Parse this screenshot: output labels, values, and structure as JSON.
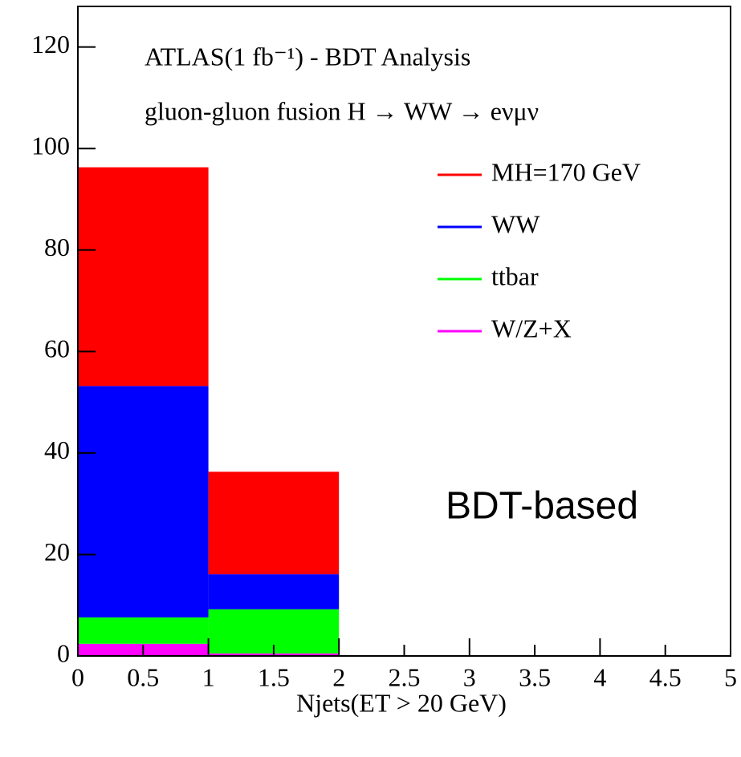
{
  "chart_data": {
    "type": "stacked-histogram",
    "title": "ATLAS(1 fb⁻¹) - BDT Analysis",
    "subtitle": "gluon-gluon fusion H → WW → eνμν",
    "x_label": "Njets(ET > 20 GeV)",
    "annotation": "BDT-based",
    "bins": [
      0,
      1,
      2,
      3,
      4,
      5
    ],
    "series": [
      {
        "name": "W/Z+X",
        "color": "#ff00ff",
        "values": [
          2.4,
          0.5,
          0,
          0,
          0
        ]
      },
      {
        "name": "ttbar",
        "color": "#00ff00",
        "values": [
          5.2,
          8.7,
          0,
          0,
          0
        ]
      },
      {
        "name": "WW",
        "color": "#0000ff",
        "values": [
          45.6,
          6.9,
          0,
          0,
          0
        ]
      },
      {
        "name": "MH=170 GeV",
        "color": "#ff0000",
        "values": [
          43.1,
          20.2,
          0,
          0,
          0
        ]
      }
    ],
    "xlim": [
      0,
      5
    ],
    "xticks": [
      0,
      0.5,
      1,
      1.5,
      2,
      2.5,
      3,
      3.5,
      4,
      4.5,
      5
    ],
    "ylim": [
      0,
      128
    ],
    "yticks": [
      0,
      20,
      40,
      60,
      80,
      100,
      120
    ],
    "legend": "upper-right"
  }
}
